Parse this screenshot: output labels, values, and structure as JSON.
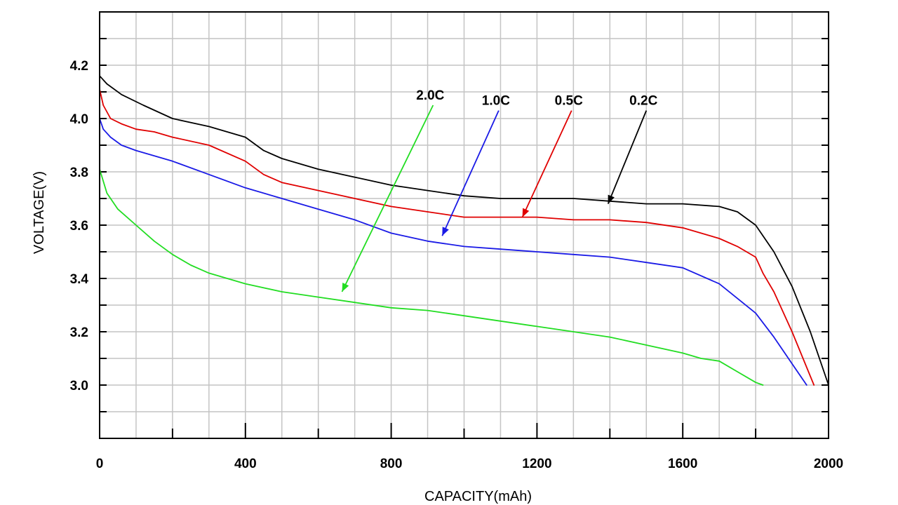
{
  "chart_data": {
    "type": "line",
    "title": "",
    "xlabel": "CAPACITY(mAh)",
    "ylabel": "VOLTAGE(V)",
    "xlim": [
      0,
      2000
    ],
    "ylim": [
      2.8,
      4.4
    ],
    "x_ticks": [
      "0",
      "400",
      "800",
      "1200",
      "1600",
      "2000"
    ],
    "y_ticks": [
      "3.0",
      "3.2",
      "3.4",
      "3.6",
      "3.8",
      "4.0",
      "4.2"
    ],
    "grid": true,
    "legend": "none",
    "series": [
      {
        "name": "0.2C",
        "color": "#000000",
        "x": [
          0,
          20,
          60,
          120,
          200,
          300,
          400,
          450,
          500,
          600,
          700,
          800,
          900,
          1000,
          1100,
          1200,
          1300,
          1400,
          1500,
          1600,
          1700,
          1750,
          1800,
          1850,
          1900,
          1950,
          2000
        ],
        "y": [
          4.16,
          4.13,
          4.09,
          4.05,
          4.0,
          3.97,
          3.93,
          3.88,
          3.85,
          3.81,
          3.78,
          3.75,
          3.73,
          3.71,
          3.7,
          3.7,
          3.7,
          3.69,
          3.68,
          3.68,
          3.67,
          3.65,
          3.6,
          3.5,
          3.37,
          3.2,
          3.0
        ]
      },
      {
        "name": "0.5C",
        "color": "#e00000",
        "x": [
          0,
          10,
          30,
          60,
          100,
          150,
          200,
          300,
          400,
          450,
          500,
          600,
          700,
          800,
          900,
          1000,
          1100,
          1200,
          1300,
          1400,
          1500,
          1600,
          1700,
          1750,
          1800,
          1820,
          1850,
          1900,
          1930,
          1960
        ],
        "y": [
          4.11,
          4.05,
          4.0,
          3.98,
          3.96,
          3.95,
          3.93,
          3.9,
          3.84,
          3.79,
          3.76,
          3.73,
          3.7,
          3.67,
          3.65,
          3.63,
          3.63,
          3.63,
          3.62,
          3.62,
          3.61,
          3.59,
          3.55,
          3.52,
          3.48,
          3.42,
          3.35,
          3.2,
          3.1,
          3.0
        ]
      },
      {
        "name": "1.0C",
        "color": "#1a1ae6",
        "x": [
          0,
          10,
          30,
          60,
          100,
          200,
          300,
          400,
          500,
          600,
          700,
          800,
          900,
          1000,
          1100,
          1200,
          1300,
          1400,
          1500,
          1600,
          1700,
          1800,
          1850,
          1900,
          1940
        ],
        "y": [
          4.0,
          3.96,
          3.93,
          3.9,
          3.88,
          3.84,
          3.79,
          3.74,
          3.7,
          3.66,
          3.62,
          3.57,
          3.54,
          3.52,
          3.51,
          3.5,
          3.49,
          3.48,
          3.46,
          3.44,
          3.38,
          3.27,
          3.18,
          3.08,
          3.0
        ]
      },
      {
        "name": "2.0C",
        "color": "#22dd22",
        "x": [
          0,
          20,
          50,
          100,
          150,
          200,
          250,
          300,
          400,
          500,
          600,
          700,
          800,
          900,
          1000,
          1100,
          1200,
          1300,
          1400,
          1500,
          1600,
          1650,
          1700,
          1750,
          1800,
          1820
        ],
        "y": [
          3.81,
          3.72,
          3.66,
          3.6,
          3.54,
          3.49,
          3.45,
          3.42,
          3.38,
          3.35,
          3.33,
          3.31,
          3.29,
          3.28,
          3.26,
          3.24,
          3.22,
          3.2,
          3.18,
          3.15,
          3.12,
          3.1,
          3.09,
          3.05,
          3.01,
          3.0
        ]
      }
    ],
    "annotations": [
      {
        "label": "2.0C",
        "series": "2.0C",
        "from": [
          915,
          4.05
        ],
        "to": [
          665,
          3.35
        ]
      },
      {
        "label": "1.0C",
        "series": "1.0C",
        "from": [
          1095,
          4.03
        ],
        "to": [
          940,
          3.56
        ]
      },
      {
        "label": "0.5C",
        "series": "0.5C",
        "from": [
          1295,
          4.03
        ],
        "to": [
          1160,
          3.63
        ]
      },
      {
        "label": "0.2C",
        "series": "0.2C",
        "from": [
          1500,
          4.03
        ],
        "to": [
          1395,
          3.68
        ]
      }
    ]
  }
}
